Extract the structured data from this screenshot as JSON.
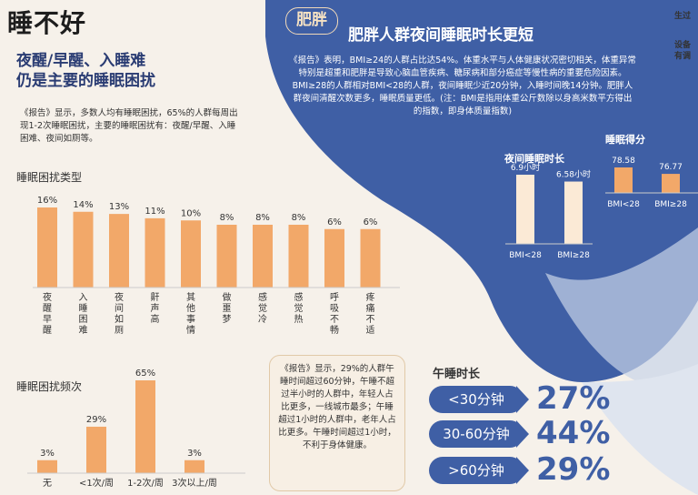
{
  "header": {
    "title": "睡不好",
    "subtitle_line1": "夜醒/早醒、入睡难",
    "subtitle_line2": "仍是主要的睡眠困扰",
    "intro": "《报告》显示，多数人均有睡眠困扰，65%的人群每周出现1-2次睡眠困扰，主要的睡眠困扰有：夜醒/早醒、入睡困难、夜间如厕等。"
  },
  "obesity": {
    "badge": "肥胖",
    "title": "肥胖人群夜间睡眠时长更短",
    "text": "《报告》表明，BMI≥24的人群占比达54%。体重水平与人体健康状况密切相关，体重异常特别是超重和肥胖是导致心脑血管疾病、糖尿病和部分癌症等慢性病的重要危险因素。BMI≥28的人群相对BMI<28的人群，夜间睡眠少近20分钟，入睡时间晚14分钟。肥胖人群夜间清醒次数更多，睡眠质量更低。(注：BMI是指用体重公斤数除以身高米数平方得出的指数，即身体质量指数)"
  },
  "callout": {
    "text": "《报告》显示，29%的人群午睡时间超过60分钟，午睡不超过半小时的人群中，年轻人占比更多，一线城市最多；午睡超过1小时的人群中，老年人占比更多。午睡时间超过1小时，不利于身体健康。"
  },
  "nap": {
    "title": "午睡时长",
    "rows": [
      {
        "label": "<30分钟",
        "value": "27%"
      },
      {
        "label": "30-60分钟",
        "value": "44%"
      },
      {
        "label": ">60分钟",
        "value": "29%"
      }
    ]
  },
  "edge_text": {
    "line1": "生过",
    "line2": "设备",
    "line3": "有调"
  },
  "colors": {
    "bar": "#f2a869",
    "blue": "#3f5fa5",
    "night_bar": "#fbead6"
  },
  "chart_data": [
    {
      "type": "bar",
      "title": "睡眠困扰类型",
      "categories": [
        "夜醒早醒",
        "入睡困难",
        "夜间如厕",
        "鼾声高",
        "其他事情",
        "做噩梦",
        "感觉冷",
        "感觉热",
        "呼吸不畅",
        "疼痛不适"
      ],
      "values": [
        16,
        14,
        13,
        11,
        10,
        8,
        8,
        8,
        6,
        6
      ],
      "value_labels": [
        "16%",
        "14%",
        "13%",
        "11%",
        "10%",
        "8%",
        "8%",
        "8%",
        "6%",
        "6%"
      ],
      "ylim": [
        0,
        16
      ]
    },
    {
      "type": "bar",
      "title": "睡眠困扰频次",
      "categories": [
        "无",
        "<1次/周",
        "1-2次/周",
        "3次以上/周"
      ],
      "values": [
        3,
        29,
        65,
        3
      ],
      "value_labels": [
        "3%",
        "29%",
        "65%",
        "3%"
      ],
      "ylim": [
        0,
        65
      ]
    },
    {
      "type": "bar",
      "title": "夜间睡眠时长",
      "categories": [
        "BMI<28",
        "BMI≥28"
      ],
      "values": [
        6.9,
        6.58
      ],
      "value_labels": [
        "6.9小时",
        "6.58小时"
      ],
      "ylim": [
        5.2,
        6.9
      ]
    },
    {
      "type": "bar",
      "title": "睡眠得分",
      "categories": [
        "BMI<28",
        "BMI≥28"
      ],
      "values": [
        78.58,
        76.77
      ],
      "value_labels": [
        "78.58",
        "76.77"
      ],
      "ylim": [
        75.0,
        78.58
      ]
    }
  ]
}
